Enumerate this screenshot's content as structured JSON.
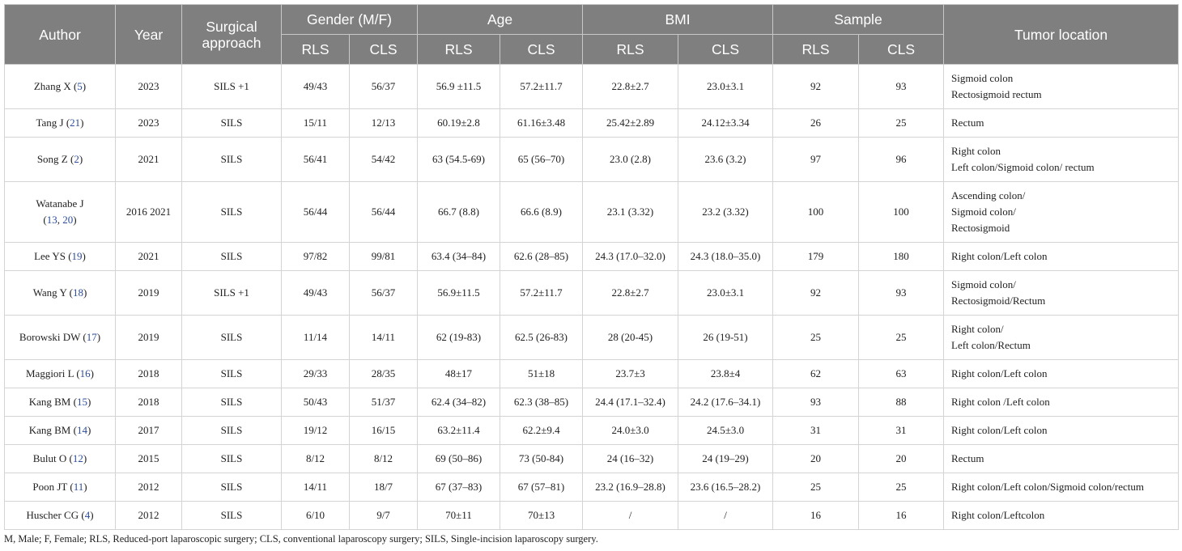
{
  "table": {
    "headers": {
      "author": "Author",
      "year": "Year",
      "approach_line1": "Surgical",
      "approach_line2": "approach",
      "gender": "Gender (M/F)",
      "age": "Age",
      "bmi": "BMI",
      "sample": "Sample",
      "location": "Tumor location",
      "rls": "RLS",
      "cls": "CLS"
    },
    "rows": [
      {
        "author_name": "Zhang X (",
        "refs": "5",
        "author_tail": ")",
        "year": "2023",
        "approach": "SILS +1",
        "gender_rls": "49/43",
        "gender_cls": "56/37",
        "age_rls": "56.9 ±11.5",
        "age_cls": "57.2±11.7",
        "bmi_rls": "22.8±2.7",
        "bmi_cls": "23.0±3.1",
        "sample_rls": "92",
        "sample_cls": "93",
        "location": [
          "Sigmoid colon",
          "Rectosigmoid rectum"
        ]
      },
      {
        "author_name": "Tang J (",
        "refs": "21",
        "author_tail": ")",
        "year": "2023",
        "approach": "SILS",
        "gender_rls": "15/11",
        "gender_cls": "12/13",
        "age_rls": "60.19±2.8",
        "age_cls": "61.16±3.48",
        "bmi_rls": "25.42±2.89",
        "bmi_cls": "24.12±3.34",
        "sample_rls": "26",
        "sample_cls": "25",
        "location": [
          "Rectum"
        ]
      },
      {
        "author_name": "Song Z (",
        "refs": "2",
        "author_tail": ")",
        "year": "2021",
        "approach": "SILS",
        "gender_rls": "56/41",
        "gender_cls": "54/42",
        "age_rls": "63 (54.5-69)",
        "age_cls": "65 (56–70)",
        "bmi_rls": "23.0 (2.8)",
        "bmi_cls": "23.6 (3.2)",
        "sample_rls": "97",
        "sample_cls": "96",
        "location": [
          "Right colon",
          "Left colon/Sigmoid colon/ rectum"
        ]
      },
      {
        "author_name": "Watanabe J",
        "author_line2_open": "(",
        "refs_a": "13",
        "refs_sep": ", ",
        "refs_b": "20",
        "author_tail": ")",
        "year": "2016 2021",
        "approach": "SILS",
        "gender_rls": "56/44",
        "gender_cls": "56/44",
        "age_rls": "66.7 (8.8)",
        "age_cls": "66.6 (8.9)",
        "bmi_rls": "23.1 (3.32)",
        "bmi_cls": "23.2 (3.32)",
        "sample_rls": "100",
        "sample_cls": "100",
        "location": [
          "Ascending colon/",
          "Sigmoid colon/",
          "Rectosigmoid"
        ]
      },
      {
        "author_name": "Lee YS (",
        "refs": "19",
        "author_tail": ")",
        "year": "2021",
        "approach": "SILS",
        "gender_rls": "97/82",
        "gender_cls": "99/81",
        "age_rls": "63.4 (34–84)",
        "age_cls": "62.6 (28–85)",
        "bmi_rls": "24.3 (17.0–32.0)",
        "bmi_cls": "24.3 (18.0–35.0)",
        "sample_rls": "179",
        "sample_cls": "180",
        "location": [
          "Right colon/Left colon"
        ]
      },
      {
        "author_name": "Wang Y (",
        "refs": "18",
        "author_tail": ")",
        "year": "2019",
        "approach": "SILS +1",
        "gender_rls": "49/43",
        "gender_cls": "56/37",
        "age_rls": "56.9±11.5",
        "age_cls": "57.2±11.7",
        "bmi_rls": "22.8±2.7",
        "bmi_cls": "23.0±3.1",
        "sample_rls": "92",
        "sample_cls": "93",
        "location": [
          "Sigmoid colon/",
          "Rectosigmoid/Rectum"
        ]
      },
      {
        "author_name": "Borowski DW (",
        "refs": "17",
        "author_tail": ")",
        "year": "2019",
        "approach": "SILS",
        "gender_rls": "11/14",
        "gender_cls": "14/11",
        "age_rls": "62 (19-83)",
        "age_cls": "62.5 (26-83)",
        "bmi_rls": "28 (20-45)",
        "bmi_cls": "26 (19-51)",
        "sample_rls": "25",
        "sample_cls": "25",
        "location": [
          "Right colon/",
          "Left colon/Rectum"
        ]
      },
      {
        "author_name": "Maggiori L (",
        "refs": "16",
        "author_tail": ")",
        "year": "2018",
        "approach": "SILS",
        "gender_rls": "29/33",
        "gender_cls": "28/35",
        "age_rls": "48±17",
        "age_cls": "51±18",
        "bmi_rls": "23.7±3",
        "bmi_cls": "23.8±4",
        "sample_rls": "62",
        "sample_cls": "63",
        "location": [
          "Right colon/Left colon"
        ]
      },
      {
        "author_name": "Kang BM (",
        "refs": "15",
        "author_tail": ")",
        "year": "2018",
        "approach": "SILS",
        "gender_rls": "50/43",
        "gender_cls": "51/37",
        "age_rls": "62.4 (34–82)",
        "age_cls": "62.3 (38–85)",
        "bmi_rls": "24.4 (17.1–32.4)",
        "bmi_cls": "24.2 (17.6–34.1)",
        "sample_rls": "93",
        "sample_cls": "88",
        "location": [
          "Right colon /Left colon"
        ]
      },
      {
        "author_name": "Kang BM (",
        "refs": "14",
        "author_tail": ")",
        "year": "2017",
        "approach": "SILS",
        "gender_rls": "19/12",
        "gender_cls": "16/15",
        "age_rls": "63.2±11.4",
        "age_cls": "62.2±9.4",
        "bmi_rls": "24.0±3.0",
        "bmi_cls": "24.5±3.0",
        "sample_rls": "31",
        "sample_cls": "31",
        "location": [
          "Right colon/Left colon"
        ]
      },
      {
        "author_name": "Bulut O (",
        "refs": "12",
        "author_tail": ")",
        "year": "2015",
        "approach": "SILS",
        "gender_rls": "8/12",
        "gender_cls": "8/12",
        "age_rls": "69 (50–86)",
        "age_cls": "73 (50-84)",
        "bmi_rls": "24 (16–32)",
        "bmi_cls": "24 (19–29)",
        "sample_rls": "20",
        "sample_cls": "20",
        "location": [
          "Rectum"
        ]
      },
      {
        "author_name": "Poon JT (",
        "refs": "11",
        "author_tail": ")",
        "year": "2012",
        "approach": "SILS",
        "gender_rls": "14/11",
        "gender_cls": "18/7",
        "age_rls": "67 (37–83)",
        "age_cls": "67 (57–81)",
        "bmi_rls": "23.2 (16.9–28.8)",
        "bmi_cls": "23.6 (16.5–28.2)",
        "sample_rls": "25",
        "sample_cls": "25",
        "location": [
          "Right colon/Left colon/Sigmoid colon/rectum"
        ]
      },
      {
        "author_name": "Huscher CG (",
        "refs": "4",
        "author_tail": ")",
        "year": "2012",
        "approach": "SILS",
        "gender_rls": "6/10",
        "gender_cls": "9/7",
        "age_rls": "70±11",
        "age_cls": "70±13",
        "bmi_rls": "/",
        "bmi_cls": "/",
        "sample_rls": "16",
        "sample_cls": "16",
        "location": [
          "Right colon/Leftcolon"
        ]
      }
    ]
  },
  "footnote": "M, Male; F, Female; RLS, Reduced-port laparoscopic surgery; CLS, conventional laparoscopy surgery; SILS, Single-incision laparoscopy surgery."
}
